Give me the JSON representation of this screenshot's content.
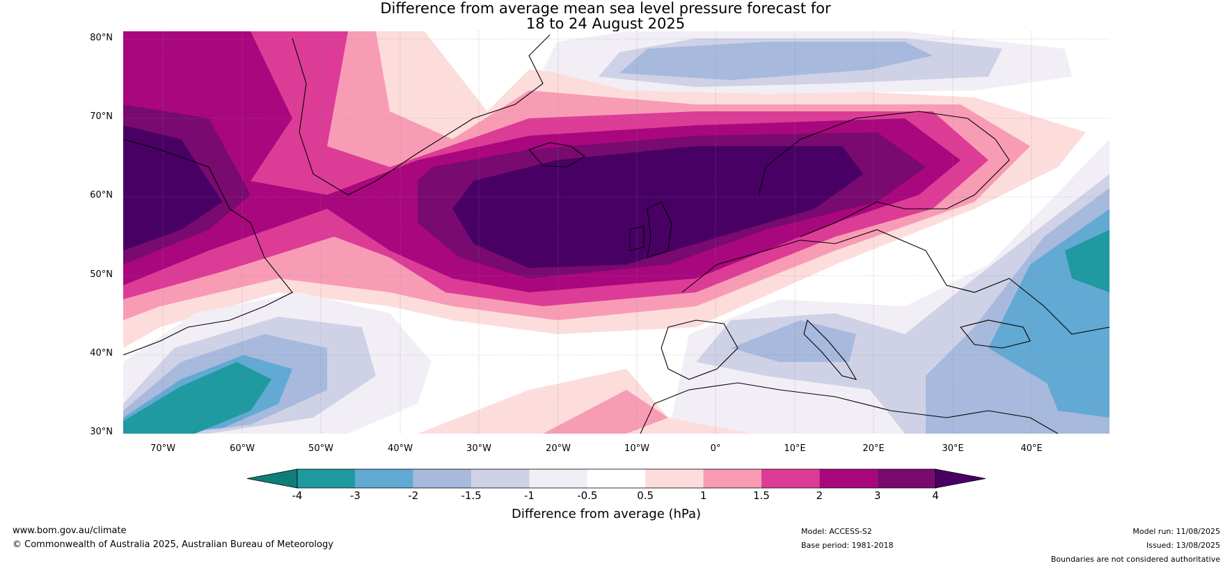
{
  "title_line1": "Difference from average mean sea level pressure forecast for",
  "title_line2": "18 to 24 August 2025",
  "latitude_labels": [
    "80°N",
    "70°N",
    "60°N",
    "50°N",
    "40°N",
    "30°N"
  ],
  "longitude_labels": [
    "70°W",
    "60°W",
    "50°W",
    "40°W",
    "30°W",
    "20°W",
    "10°W",
    "0°",
    "10°E",
    "20°E",
    "30°E",
    "40°E"
  ],
  "colorbar": {
    "label": "Difference from average (hPa)",
    "ticks": [
      "-4",
      "-3",
      "-2",
      "-1.5",
      "-1",
      "-0.5",
      "0.5",
      "1",
      "1.5",
      "2",
      "3",
      "4"
    ],
    "colors": [
      "#0d7e78",
      "#1f9aa0",
      "#62a9d3",
      "#a7b9dc",
      "#cfd1e6",
      "#f2eef6",
      "#ffffff",
      "#fddcdc",
      "#f89cb6",
      "#dc3c96",
      "#a9077d",
      "#790a6f",
      "#480065"
    ]
  },
  "footer": {
    "website": "www.bom.gov.au/climate",
    "copyright": "© Commonwealth of Australia 2025, Australian Bureau of Meteorology",
    "model": "Model: ACCESS-S2",
    "base_period": "Base period: 1981-2018",
    "model_run": "Model run: 11/08/2025",
    "issued": "Issued: 13/08/2025",
    "disclaimer": "Boundaries are not considered authoritative"
  }
}
